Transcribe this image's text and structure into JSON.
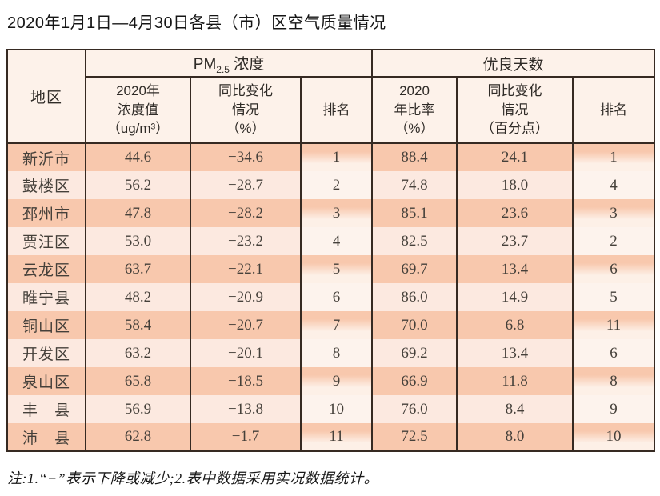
{
  "title": "2020年1月1日—4月30日各县（市）区空气质量情况",
  "table": {
    "headers": {
      "region": "地区",
      "pm_group": {
        "pre": "PM",
        "sub": "2.5",
        "post": " 浓度"
      },
      "good_group": "优良天数",
      "pm_value": "2020年\n浓度值\n（ug/m³）",
      "pm_change": "同比变化\n情况\n（%）",
      "pm_rank": "排名",
      "ratio": "2020\n年比率\n（%）",
      "ratio_change": "同比变化\n情况\n（百分点）",
      "ratio_rank": "排名"
    },
    "rows": [
      {
        "region": "新沂市",
        "pm_value": "44.6",
        "pm_change": "−34.6",
        "pm_rank": "1",
        "ratio": "88.4",
        "ratio_change": "24.1",
        "ratio_rank": "1"
      },
      {
        "region": "鼓楼区",
        "pm_value": "56.2",
        "pm_change": "−28.7",
        "pm_rank": "2",
        "ratio": "74.8",
        "ratio_change": "18.0",
        "ratio_rank": "4"
      },
      {
        "region": "邳州市",
        "pm_value": "47.8",
        "pm_change": "−28.2",
        "pm_rank": "3",
        "ratio": "85.1",
        "ratio_change": "23.6",
        "ratio_rank": "3"
      },
      {
        "region": "贾汪区",
        "pm_value": "53.0",
        "pm_change": "−23.2",
        "pm_rank": "4",
        "ratio": "82.5",
        "ratio_change": "23.7",
        "ratio_rank": "2"
      },
      {
        "region": "云龙区",
        "pm_value": "63.7",
        "pm_change": "−22.1",
        "pm_rank": "5",
        "ratio": "69.7",
        "ratio_change": "13.4",
        "ratio_rank": "6"
      },
      {
        "region": "睢宁县",
        "pm_value": "48.2",
        "pm_change": "−20.9",
        "pm_rank": "6",
        "ratio": "86.0",
        "ratio_change": "14.9",
        "ratio_rank": "5"
      },
      {
        "region": "铜山区",
        "pm_value": "58.4",
        "pm_change": "−20.7",
        "pm_rank": "7",
        "ratio": "70.0",
        "ratio_change": "6.8",
        "ratio_rank": "11"
      },
      {
        "region": "开发区",
        "pm_value": "63.2",
        "pm_change": "−20.1",
        "pm_rank": "8",
        "ratio": "69.2",
        "ratio_change": "13.4",
        "ratio_rank": "6"
      },
      {
        "region": "泉山区",
        "pm_value": "65.8",
        "pm_change": "−18.5",
        "pm_rank": "9",
        "ratio": "66.9",
        "ratio_change": "11.8",
        "ratio_rank": "8"
      },
      {
        "region": "丰　县",
        "pm_value": "56.9",
        "pm_change": "−13.8",
        "pm_rank": "10",
        "ratio": "76.0",
        "ratio_change": "8.4",
        "ratio_rank": "9"
      },
      {
        "region": "沛　县",
        "pm_value": "62.8",
        "pm_change": "−1.7",
        "pm_rank": "11",
        "ratio": "72.5",
        "ratio_change": "8.0",
        "ratio_rank": "10"
      }
    ]
  },
  "note": "注:1.“−”表示下降或减少;2.表中数据采用实况数据统计。",
  "colors": {
    "band_dark": "#f8c8ad",
    "band_light": "#fce9e0",
    "header_bg": "#fdf2ea",
    "border": "#362a22"
  }
}
